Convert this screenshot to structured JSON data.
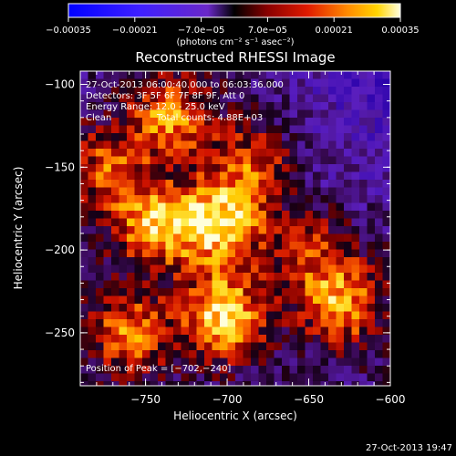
{
  "chart_data": {
    "type": "heatmap",
    "title": "Reconstructed RHESSI Image",
    "xlabel": "Heliocentric X (arcsec)",
    "ylabel": "Heliocentric Y (arcsec)",
    "xlim": [
      -790,
      -600
    ],
    "ylim": [
      -282,
      -92
    ],
    "xticks": [
      -750,
      -700,
      -650,
      -600
    ],
    "xtick_labels": [
      "−750",
      "−700",
      "−650",
      "−600"
    ],
    "yticks": [
      -100,
      -150,
      -200,
      -250
    ],
    "ytick_labels": [
      "−100",
      "−150",
      "−200",
      "−250"
    ],
    "colorbar": {
      "min": -0.00035,
      "max": 0.00035,
      "tick_values": [
        -0.00035,
        -0.00021,
        -7e-05,
        7e-05,
        0.00021,
        0.00035
      ],
      "tick_labels": [
        "−0.00035",
        "−0.00021",
        "−7.0e−05",
        "7.0e−05",
        "0.00021",
        "0.00035"
      ],
      "units": "(photons cm⁻² s⁻¹ asec⁻²)"
    },
    "sources": [
      {
        "x": -702,
        "y": -240,
        "strength": 1.0
      },
      {
        "x": -705,
        "y": -185,
        "strength": 0.95
      },
      {
        "x": -745,
        "y": -185,
        "strength": 0.85
      },
      {
        "x": -735,
        "y": -120,
        "strength": 0.75
      },
      {
        "x": -760,
        "y": -250,
        "strength": 0.7
      },
      {
        "x": -630,
        "y": -232,
        "strength": 0.8
      },
      {
        "x": -685,
        "y": -150,
        "strength": 0.6
      },
      {
        "x": -650,
        "y": -200,
        "strength": 0.45
      },
      {
        "x": -775,
        "y": -150,
        "strength": 0.55
      }
    ],
    "annotations": {
      "time_range": "27-Oct-2013 06:00:40.000 to 06:03:36.000",
      "detectors": "Detectors: 3F 5F 6F 7F 8F 9F, Att 0",
      "energy": "Energy Range: 12.0 - 25.0 keV",
      "method": "Clean",
      "counts": "Total counts: 4.88E+03",
      "peak": "Position of Peak = [−702,−240]"
    },
    "footer_timestamp": "27-Oct-2013 19:47"
  }
}
